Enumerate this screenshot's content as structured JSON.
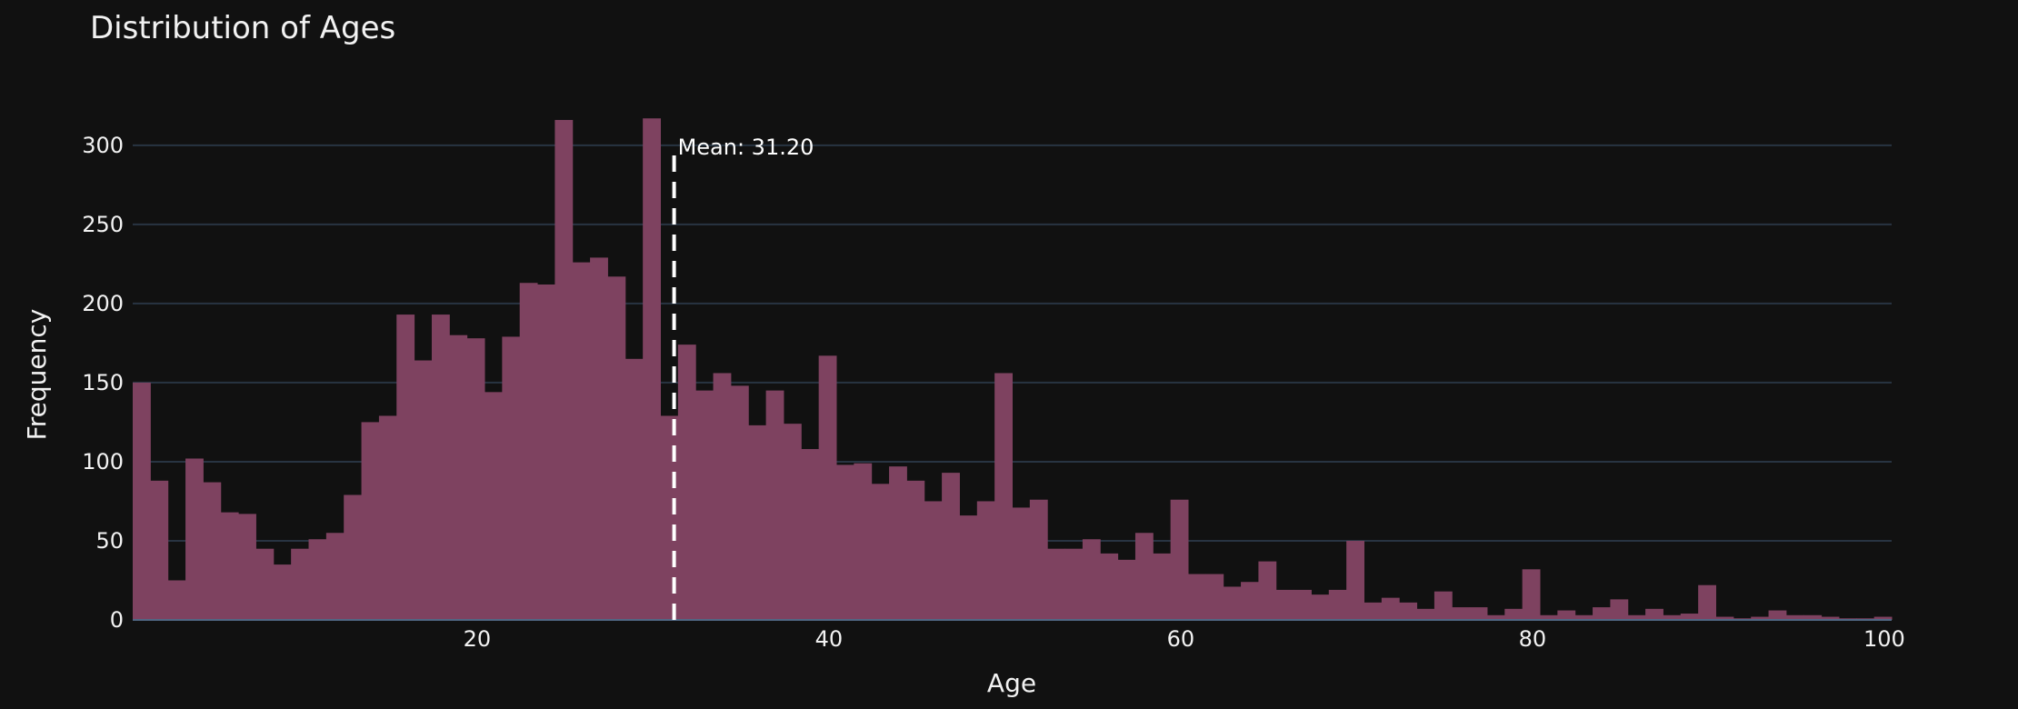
{
  "chart_data": {
    "type": "bar",
    "title": "Distribution of Ages",
    "xlabel": "Age",
    "ylabel": "Frequency",
    "xlim": [
      0.42,
      100.42
    ],
    "ylim": [
      0,
      320
    ],
    "x_ticks": [
      20,
      40,
      60,
      80,
      100
    ],
    "y_ticks": [
      0,
      50,
      100,
      150,
      200,
      250,
      300
    ],
    "bin_start": 0.42,
    "bin_width": 1,
    "series": [
      {
        "name": "Age",
        "values": [
          150,
          88,
          25,
          102,
          87,
          68,
          67,
          45,
          35,
          45,
          51,
          55,
          79,
          125,
          129,
          193,
          164,
          193,
          180,
          178,
          144,
          179,
          213,
          212,
          316,
          226,
          229,
          217,
          165,
          317,
          129,
          174,
          145,
          156,
          148,
          123,
          145,
          124,
          108,
          167,
          98,
          99,
          86,
          97,
          88,
          75,
          93,
          66,
          75,
          156,
          71,
          76,
          45,
          45,
          51,
          42,
          38,
          55,
          42,
          76,
          29,
          29,
          21,
          24,
          37,
          19,
          19,
          16,
          19,
          50,
          11,
          14,
          11,
          7,
          18,
          8,
          8,
          3,
          7,
          32,
          3,
          6,
          3,
          8,
          13,
          3,
          7,
          3,
          4,
          22,
          2,
          1,
          2,
          6,
          3,
          3,
          2,
          1,
          1,
          2
        ]
      }
    ],
    "mean_line": {
      "value": 31.2,
      "label": "Mean: 31.20"
    },
    "bar_color": "#7e4260",
    "grid": true,
    "background": "#111111"
  }
}
